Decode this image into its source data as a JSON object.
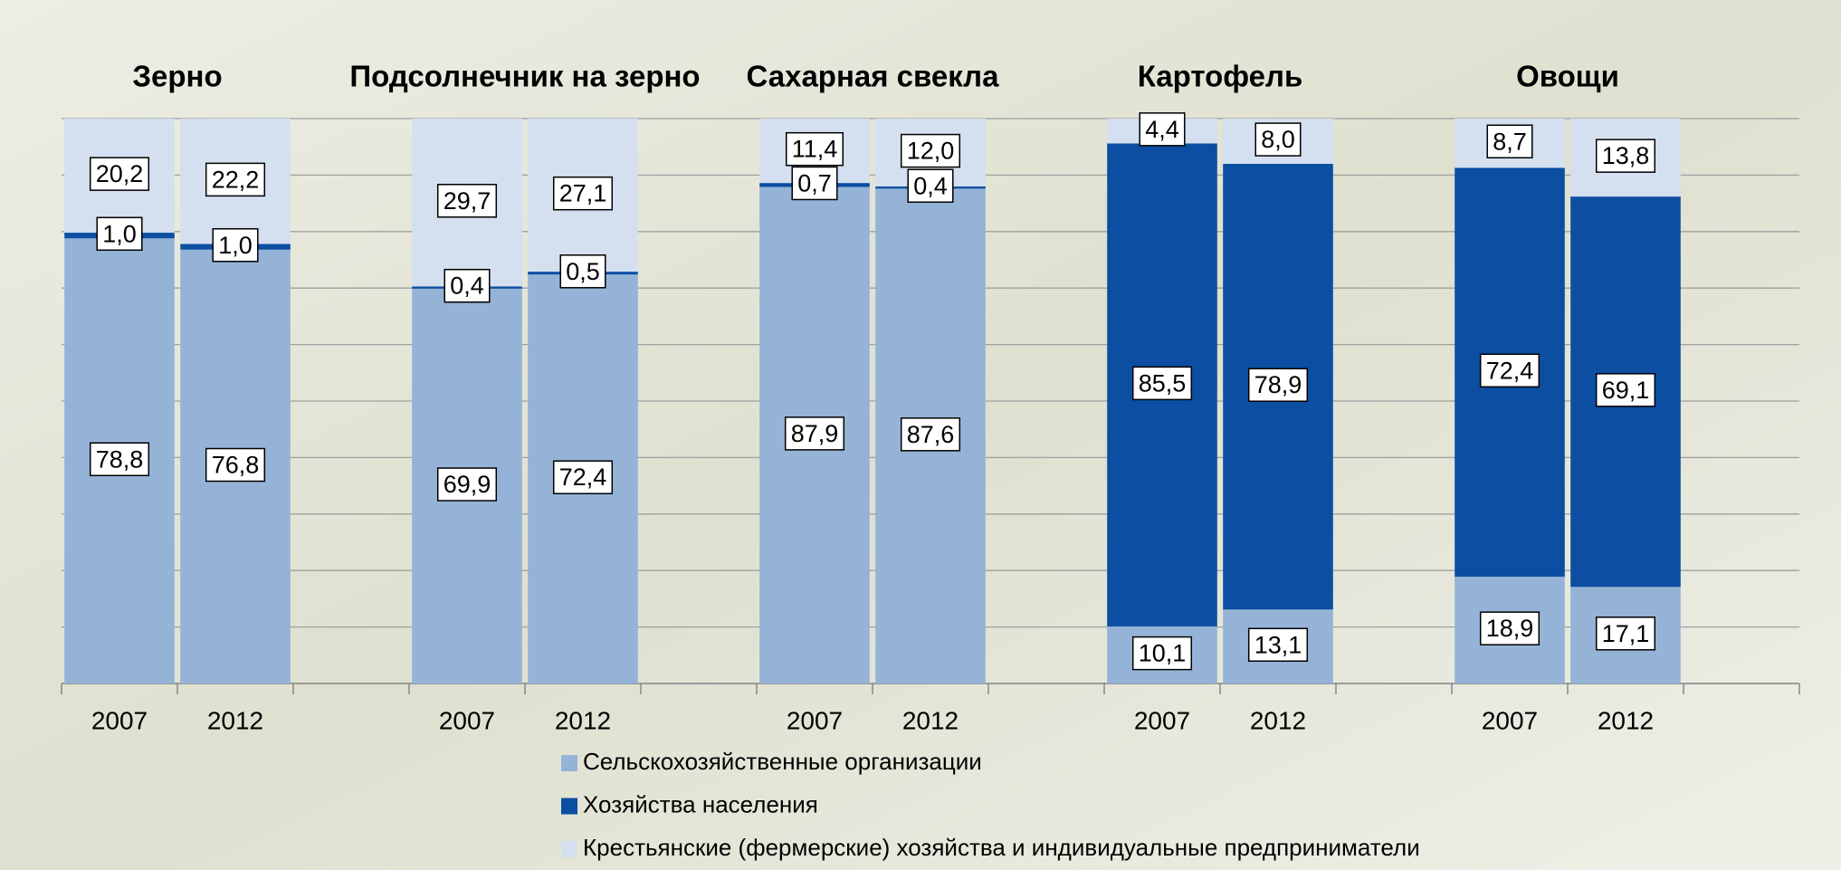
{
  "chart_data": {
    "type": "stacked_bar",
    "groups": [
      "Зерно",
      "Подсолнечник на зерно",
      "Сахарная свекла",
      "Картофель",
      "Овощи"
    ],
    "categories": [
      "2007",
      "2012",
      "2007",
      "2012",
      "2007",
      "2012",
      "2007",
      "2012",
      "2007",
      "2012"
    ],
    "series": [
      {
        "name": "Сельскохозяйственные организации",
        "color": "#95b3d7",
        "values": [
          78.8,
          76.8,
          69.9,
          72.4,
          87.9,
          87.6,
          10.1,
          13.1,
          18.9,
          17.1
        ],
        "value_labels": [
          "78,8",
          "76,8",
          "69,9",
          "72,4",
          "87,9",
          "87,6",
          "10,1",
          "13,1",
          "18,9",
          "17,1"
        ]
      },
      {
        "name": "Хозяйства населения",
        "color": "#0b4ea2",
        "values": [
          1.0,
          1.0,
          0.4,
          0.5,
          0.7,
          0.4,
          85.5,
          78.9,
          72.4,
          69.1
        ],
        "value_labels": [
          "1,0",
          "1,0",
          "0,4",
          "0,5",
          "0,7",
          "0,4",
          "85,5",
          "78,9",
          "72,4",
          "69,1"
        ]
      },
      {
        "name": "Крестьянские (фермерские) хозяйства и индивидуальные предприниматели",
        "color": "#d4e0ef",
        "values": [
          20.2,
          22.2,
          29.7,
          27.1,
          11.4,
          12.0,
          4.4,
          8.0,
          8.7,
          13.8
        ],
        "value_labels": [
          "20,2",
          "22,2",
          "29,7",
          "27,1",
          "11,4",
          "12,0",
          "4,4",
          "8,0",
          "8,7",
          "13,8"
        ]
      }
    ],
    "ylim": [
      0,
      100
    ],
    "yticks": [
      0,
      10,
      20,
      30,
      40,
      50,
      60,
      70,
      80,
      90,
      100
    ],
    "grid": true
  }
}
